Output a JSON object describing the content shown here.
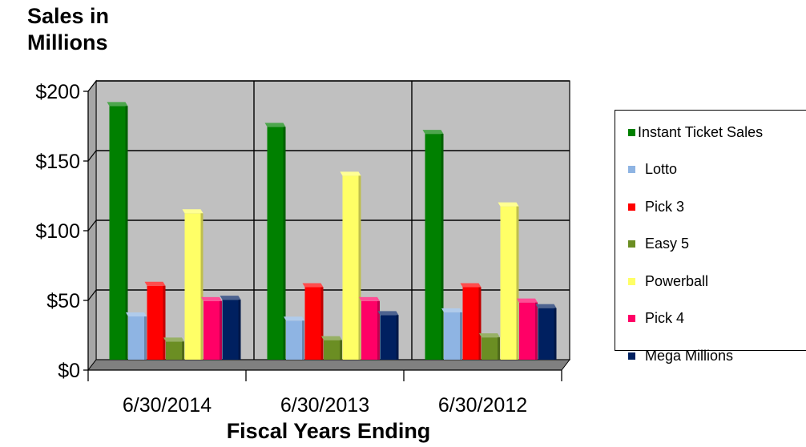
{
  "chart_data": {
    "type": "bar",
    "title": "",
    "ylabel": "Sales in Millions",
    "xlabel": "Fiscal Years Ending",
    "ylim": [
      0,
      200
    ],
    "y_ticks": [
      "$0",
      "$50",
      "$100",
      "$150",
      "$200"
    ],
    "categories": [
      "6/30/2014",
      "6/30/2013",
      "6/30/2012"
    ],
    "legend_position": "right",
    "grid": true,
    "series": [
      {
        "name": "Instant Ticket Sales",
        "color": "#008000",
        "values": [
          182,
          167,
          162
        ]
      },
      {
        "name": "Lotto",
        "color": "#8eb4e3",
        "values": [
          31,
          28,
          34
        ]
      },
      {
        "name": "Pick 3",
        "color": "#ff0000",
        "values": [
          53,
          52,
          52
        ]
      },
      {
        "name": "Easy 5",
        "color": "#6b8e23",
        "values": [
          13,
          14,
          16
        ]
      },
      {
        "name": "Powerball",
        "color": "#ffff66",
        "values": [
          105,
          132,
          110
        ]
      },
      {
        "name": "Pick 4",
        "color": "#ff0066",
        "values": [
          42,
          42,
          41
        ]
      },
      {
        "name": "Mega Millions",
        "color": "#002060",
        "values": [
          43,
          32,
          37
        ]
      }
    ]
  }
}
